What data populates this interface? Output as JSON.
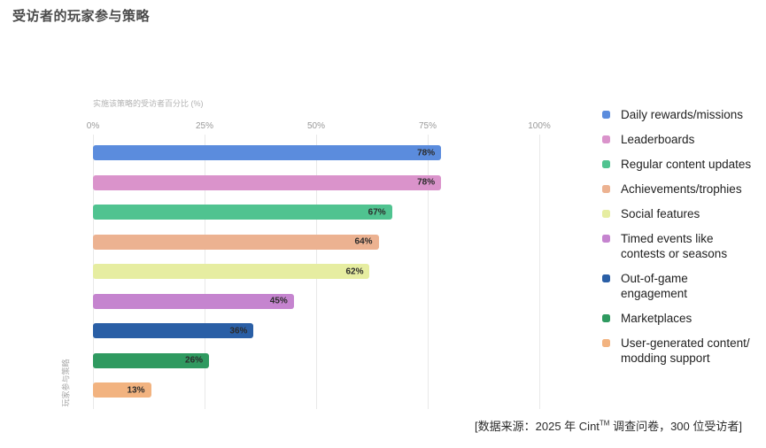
{
  "page": {
    "title": "受访者的玩家参与策略"
  },
  "chart": {
    "axis_title": "实施该策略的受访者百分比 (%)",
    "y_axis_label": "玩家参与策略",
    "tick_labels": [
      "0%",
      "25%",
      "50%",
      "75%",
      "100%"
    ]
  },
  "chart_data": {
    "type": "bar",
    "orientation": "horizontal",
    "title": "受访者的玩家参与策略",
    "xlabel": "实施该策略的受访者百分比 (%)",
    "ylabel": "玩家参与策略",
    "xlim": [
      0,
      100
    ],
    "x_ticks": [
      0,
      25,
      50,
      75,
      100
    ],
    "grid": "vertical",
    "legend_position": "right",
    "categories": [
      "Daily rewards/missions",
      "Leaderboards",
      "Regular content updates",
      "Achievements/trophies",
      "Social features",
      "Timed events like contests or seasons",
      "Out-of-game engagement",
      "Marketplaces",
      "User-generated content/modding support"
    ],
    "values": [
      78,
      78,
      67,
      64,
      62,
      45,
      36,
      26,
      13
    ],
    "value_labels": [
      "78%",
      "78%",
      "67%",
      "64%",
      "62%",
      "45%",
      "36%",
      "26%",
      "13%"
    ],
    "colors": [
      "#5b8cdd",
      "#da93cb",
      "#50c390",
      "#ecb291",
      "#e6eda1",
      "#c584cf",
      "#2a5fa6",
      "#2f9a60",
      "#f2b380"
    ]
  },
  "legend": {
    "items": [
      {
        "lines": [
          "Daily rewards/missions"
        ],
        "color": "#5b8cdd"
      },
      {
        "lines": [
          "Leaderboards"
        ],
        "color": "#da93cb"
      },
      {
        "lines": [
          "Regular content updates"
        ],
        "color": "#50c390"
      },
      {
        "lines": [
          "Achievements/trophies"
        ],
        "color": "#ecb291"
      },
      {
        "lines": [
          "Social features"
        ],
        "color": "#e6eda1"
      },
      {
        "lines": [
          "Timed events like",
          "contests or seasons"
        ],
        "color": "#c584cf"
      },
      {
        "lines": [
          "Out-of-game",
          "engagement"
        ],
        "color": "#2a5fa6"
      },
      {
        "lines": [
          "Marketplaces"
        ],
        "color": "#2f9a60"
      },
      {
        "lines": [
          "User-generated content/",
          "modding support"
        ],
        "color": "#f2b380"
      }
    ]
  },
  "footer": {
    "prefix": "[数据来源：2025 年 Cint",
    "superscript": "TM",
    "suffix": " 调查问卷，300 位受访者]"
  }
}
